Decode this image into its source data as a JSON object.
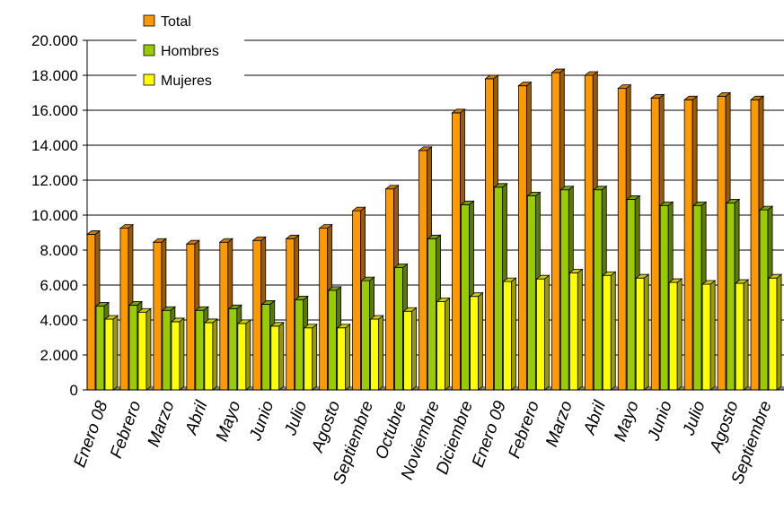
{
  "chart_data": {
    "type": "bar",
    "categories": [
      "Enero 08",
      "Febrero",
      "Marzo",
      "Abril",
      "Mayo",
      "Junio",
      "Julio",
      "Agosto",
      "Septiembre",
      "Octubre",
      "Noviembre",
      "Diciembre",
      "Enero 09",
      "Febrero",
      "Marzo",
      "Abril",
      "Mayo",
      "Junio",
      "Julio",
      "Agosto",
      "Septiembre"
    ],
    "series": [
      {
        "name": "Total",
        "color": "#FF9900",
        "values": [
          8900,
          9250,
          8450,
          8350,
          8450,
          8550,
          8650,
          9250,
          10250,
          11500,
          13700,
          15850,
          17800,
          17400,
          18150,
          18000,
          17250,
          16700,
          16600,
          16800,
          16600
        ]
      },
      {
        "name": "Hombres",
        "color": "#99CC00",
        "values": [
          4800,
          4850,
          4550,
          4550,
          4650,
          4900,
          5150,
          5700,
          6250,
          7000,
          8650,
          10600,
          11600,
          11100,
          11450,
          11450,
          10900,
          10550,
          10550,
          10700,
          10300
        ]
      },
      {
        "name": "Mujeres",
        "color": "#FFFF00",
        "values": [
          4050,
          4450,
          3900,
          3850,
          3800,
          3650,
          3550,
          3550,
          4050,
          4500,
          5050,
          5350,
          6200,
          6350,
          6700,
          6550,
          6400,
          6150,
          6050,
          6100,
          6400
        ]
      }
    ],
    "yticks": [
      "0",
      "2.000",
      "4.000",
      "6.000",
      "8.000",
      "10.000",
      "12.000",
      "14.000",
      "16.000",
      "18.000",
      "20.000"
    ],
    "ylim": [
      0,
      20000
    ],
    "grid": true,
    "legend_position": "top-left"
  }
}
